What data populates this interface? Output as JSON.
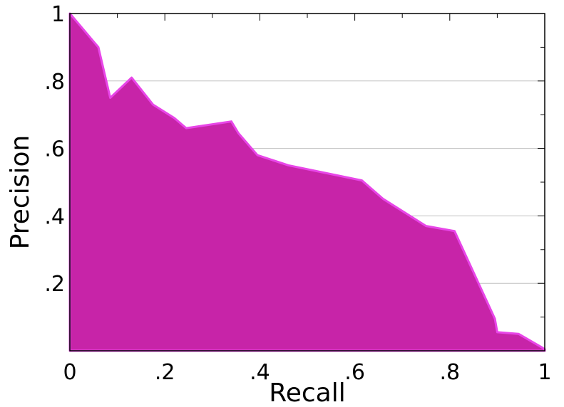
{
  "chart_data": {
    "type": "area",
    "xlabel": "Recall",
    "ylabel": "Precision",
    "xlim": [
      0,
      1
    ],
    "ylim": [
      0,
      1
    ],
    "grid": "horizontal",
    "x_ticks": [
      {
        "value": 0,
        "label": "0"
      },
      {
        "value": 0.2,
        "label": ".2"
      },
      {
        "value": 0.4,
        "label": ".4"
      },
      {
        "value": 0.6,
        "label": ".6"
      },
      {
        "value": 0.8,
        "label": ".8"
      },
      {
        "value": 1,
        "label": "1"
      }
    ],
    "y_ticks": [
      {
        "value": 0.2,
        "label": ".2"
      },
      {
        "value": 0.4,
        "label": ".4"
      },
      {
        "value": 0.6,
        "label": ".6"
      },
      {
        "value": 0.8,
        "label": ".8"
      },
      {
        "value": 1,
        "label": "1"
      }
    ],
    "colors": {
      "fill": "#c724a8",
      "edge": "#e846e8",
      "grid": "#c0c0c0"
    },
    "series": [
      {
        "x": [
          0,
          0.06,
          0.085,
          0.13,
          0.175,
          0.22,
          0.245,
          0.34,
          0.355,
          0.395,
          0.46,
          0.615,
          0.66,
          0.75,
          0.81,
          0.895,
          0.9,
          0.945,
          1
        ],
        "y": [
          1,
          0.9,
          0.75,
          0.81,
          0.73,
          0.69,
          0.66,
          0.68,
          0.645,
          0.58,
          0.55,
          0.505,
          0.45,
          0.37,
          0.355,
          0.095,
          0.055,
          0.05,
          0.005
        ]
      }
    ]
  }
}
